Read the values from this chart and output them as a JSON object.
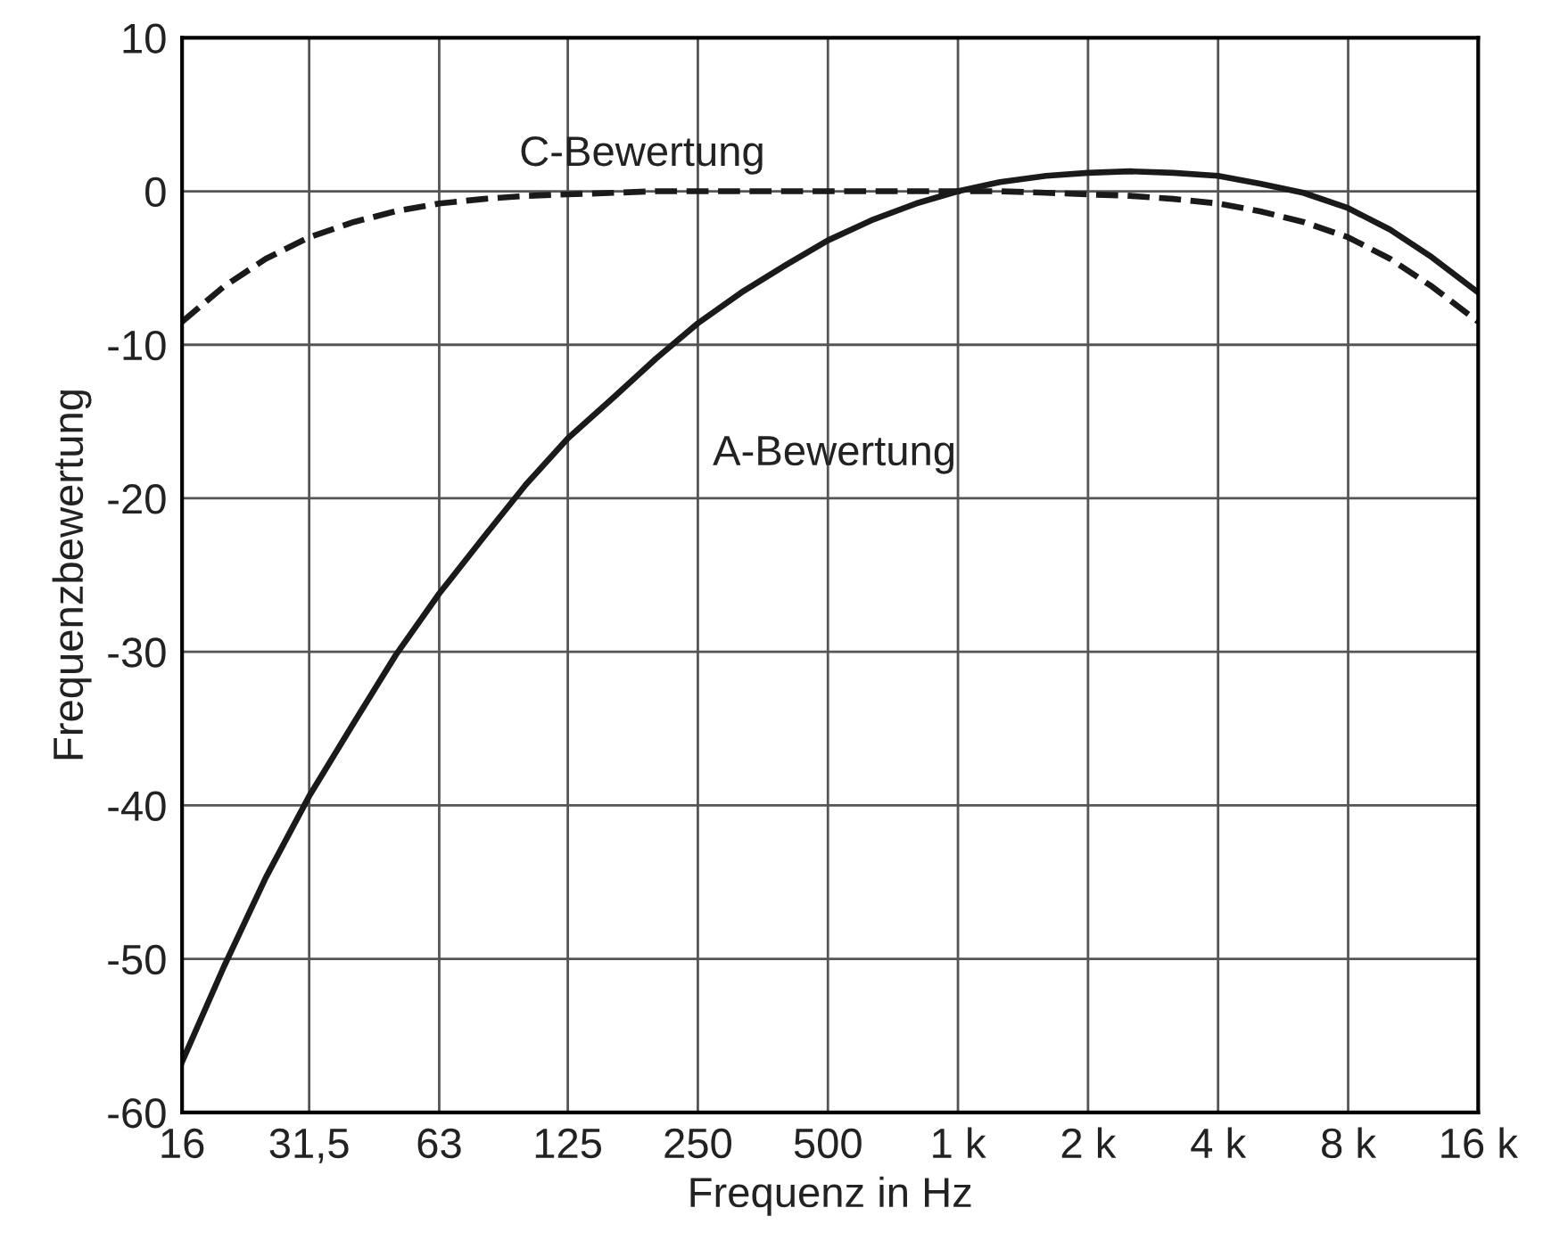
{
  "chart_data": {
    "type": "line",
    "xlabel": "Frequenz in Hz",
    "ylabel": "Frequenzbewertung",
    "log": "x",
    "xlim": [
      16,
      16000
    ],
    "ylim": [
      -60,
      10
    ],
    "xticks": [
      16,
      {
        "value": 31.5,
        "label": "31,5"
      },
      63,
      125,
      250,
      500,
      {
        "value": 1000,
        "label": "1 k"
      },
      {
        "value": 2000,
        "label": "2 k"
      },
      {
        "value": 4000,
        "label": "4 k"
      },
      {
        "value": 8000,
        "label": "8 k"
      },
      {
        "value": 16000,
        "label": "16 k"
      }
    ],
    "yticks": [
      -60,
      -50,
      -40,
      -30,
      -20,
      -10,
      0,
      10
    ],
    "grid": true,
    "marker": "none",
    "series": [
      {
        "name": "A-Bewertung",
        "color": "#1a1a1a",
        "line_style": "solid",
        "x": [
          16,
          20,
          25,
          31.5,
          40,
          50,
          63,
          80,
          100,
          125,
          160,
          200,
          250,
          315,
          400,
          500,
          630,
          800,
          1000,
          1250,
          1600,
          2000,
          2500,
          3150,
          4000,
          5000,
          6300,
          8000,
          10000,
          12500,
          16000
        ],
        "values": [
          -56.7,
          -50.5,
          -44.7,
          -39.4,
          -34.6,
          -30.2,
          -26.2,
          -22.5,
          -19.1,
          -16.1,
          -13.4,
          -10.9,
          -8.6,
          -6.6,
          -4.8,
          -3.2,
          -1.9,
          -0.8,
          0,
          0.6,
          1.0,
          1.2,
          1.3,
          1.2,
          1.0,
          0.5,
          -0.1,
          -1.1,
          -2.5,
          -4.3,
          -6.6
        ]
      },
      {
        "name": "C-Bewertung",
        "color": "#1a1a1a",
        "line_style": "dashed",
        "x": [
          16,
          20,
          25,
          31.5,
          40,
          50,
          63,
          80,
          100,
          125,
          160,
          200,
          250,
          315,
          400,
          500,
          630,
          800,
          1000,
          1250,
          1600,
          2000,
          2500,
          3150,
          4000,
          5000,
          6300,
          8000,
          10000,
          12500,
          16000
        ],
        "values": [
          -8.5,
          -6.2,
          -4.4,
          -3.0,
          -2.0,
          -1.3,
          -0.8,
          -0.5,
          -0.3,
          -0.2,
          -0.1,
          0,
          0,
          0,
          0,
          0,
          0,
          0,
          0,
          0,
          -0.1,
          -0.2,
          -0.3,
          -0.5,
          -0.8,
          -1.3,
          -2.0,
          -3.0,
          -4.4,
          -6.2,
          -8.5
        ]
      }
    ]
  }
}
